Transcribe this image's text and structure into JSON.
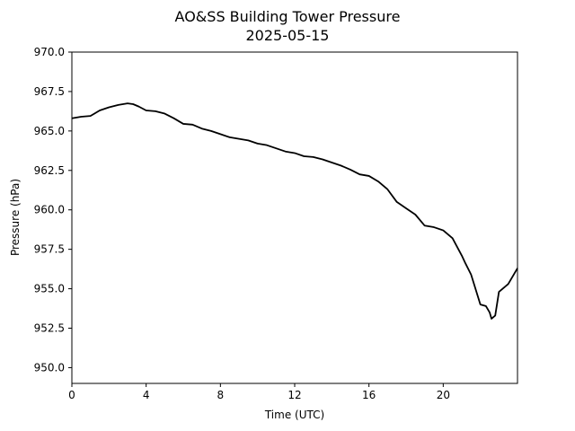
{
  "chart_data": {
    "type": "line",
    "title": "AO&SS Building Tower Pressure",
    "subtitle": "2025-05-15",
    "xlabel": "Time (UTC)",
    "ylabel": "Pressure (hPa)",
    "xlim": [
      0,
      24
    ],
    "ylim": [
      949.0,
      970.0
    ],
    "xticks": [
      0,
      4,
      8,
      12,
      16,
      20
    ],
    "xtick_labels": [
      "0",
      "4",
      "8",
      "12",
      "16",
      "20"
    ],
    "yticks": [
      950.0,
      952.5,
      955.0,
      957.5,
      960.0,
      962.5,
      965.0,
      967.5,
      970.0
    ],
    "ytick_labels": [
      "950.0",
      "952.5",
      "955.0",
      "957.5",
      "960.0",
      "962.5",
      "965.0",
      "967.5",
      "970.0"
    ],
    "grid": false,
    "line_color": "#000000",
    "series": [
      {
        "x": [
          0,
          0.5,
          1.0,
          1.5,
          2.0,
          2.5,
          3.0,
          3.3,
          3.6,
          4.0,
          4.5,
          5.0,
          5.5,
          6.0,
          6.5,
          7.0,
          7.5,
          8.0,
          8.5,
          9.0,
          9.5,
          10.0,
          10.5,
          11.0,
          11.5,
          12.0,
          12.5,
          13.0,
          13.5,
          14.0,
          14.5,
          15.0,
          15.5,
          16.0,
          16.5,
          17.0,
          17.5,
          18.0,
          18.5,
          19.0,
          19.5,
          20.0,
          20.5,
          21.0,
          21.2,
          21.5,
          22.0,
          22.3,
          22.5,
          22.6,
          22.8,
          23.0,
          23.5,
          24.0
        ],
        "y": [
          965.8,
          965.9,
          965.95,
          966.3,
          966.5,
          966.65,
          966.75,
          966.7,
          966.55,
          966.3,
          966.25,
          966.1,
          965.8,
          965.45,
          965.4,
          965.15,
          965.0,
          964.8,
          964.6,
          964.5,
          964.4,
          964.2,
          964.1,
          963.9,
          963.7,
          963.6,
          963.4,
          963.35,
          963.2,
          963.0,
          962.8,
          962.55,
          962.25,
          962.15,
          961.8,
          961.3,
          960.5,
          960.1,
          959.7,
          959.0,
          958.9,
          958.7,
          958.2,
          957.1,
          956.6,
          955.9,
          954.0,
          953.9,
          953.5,
          953.1,
          953.3,
          954.8,
          955.3,
          956.3
        ]
      }
    ]
  }
}
